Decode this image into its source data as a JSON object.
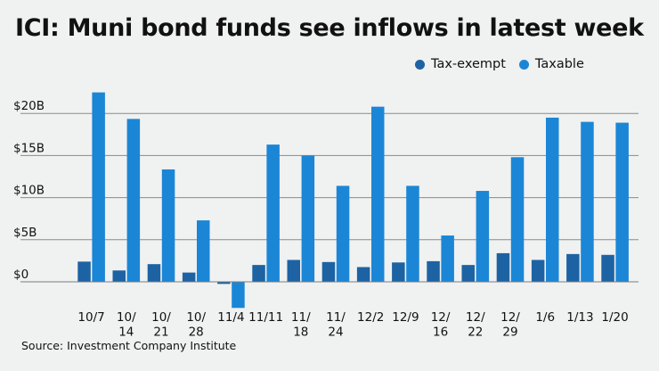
{
  "chart_data": {
    "type": "bar",
    "title": "ICI: Muni bond funds see inflows in latest week",
    "source": "Source: Investment Company Institute",
    "xlabel": "",
    "ylabel": "",
    "ylim": [
      -3.5,
      23
    ],
    "yticks": [
      {
        "value": 0,
        "label": "$0"
      },
      {
        "value": 5,
        "label": "$5B"
      },
      {
        "value": 10,
        "label": "$10B"
      },
      {
        "value": 15,
        "label": "$15B"
      },
      {
        "value": 20,
        "label": "$20B"
      }
    ],
    "grid": true,
    "legend_position": "top-right",
    "categories": [
      [
        "10/7"
      ],
      [
        "10/",
        "14"
      ],
      [
        "10/",
        "21"
      ],
      [
        "10/",
        "28"
      ],
      [
        "11/4"
      ],
      [
        "11/11"
      ],
      [
        "11/",
        "18"
      ],
      [
        "11/",
        "24"
      ],
      [
        "12/2"
      ],
      [
        "12/9"
      ],
      [
        "12/",
        "16"
      ],
      [
        "12/",
        "22"
      ],
      [
        "12/",
        "29"
      ],
      [
        "1/6"
      ],
      [
        "1/13"
      ],
      [
        "1/20"
      ]
    ],
    "series": [
      {
        "name": "Tax-exempt",
        "color": "#1d63a3",
        "values": [
          2.4,
          1.35,
          2.1,
          1.1,
          -0.25,
          2.0,
          2.6,
          2.35,
          1.75,
          2.3,
          2.45,
          2.0,
          3.4,
          2.6,
          3.3,
          3.2
        ]
      },
      {
        "name": "Taxable",
        "color": "#1b86d6",
        "values": [
          22.5,
          19.35,
          13.35,
          7.3,
          -3.1,
          16.3,
          15.0,
          11.4,
          20.8,
          11.4,
          5.5,
          10.8,
          14.8,
          19.5,
          19.0,
          18.9
        ]
      }
    ]
  }
}
